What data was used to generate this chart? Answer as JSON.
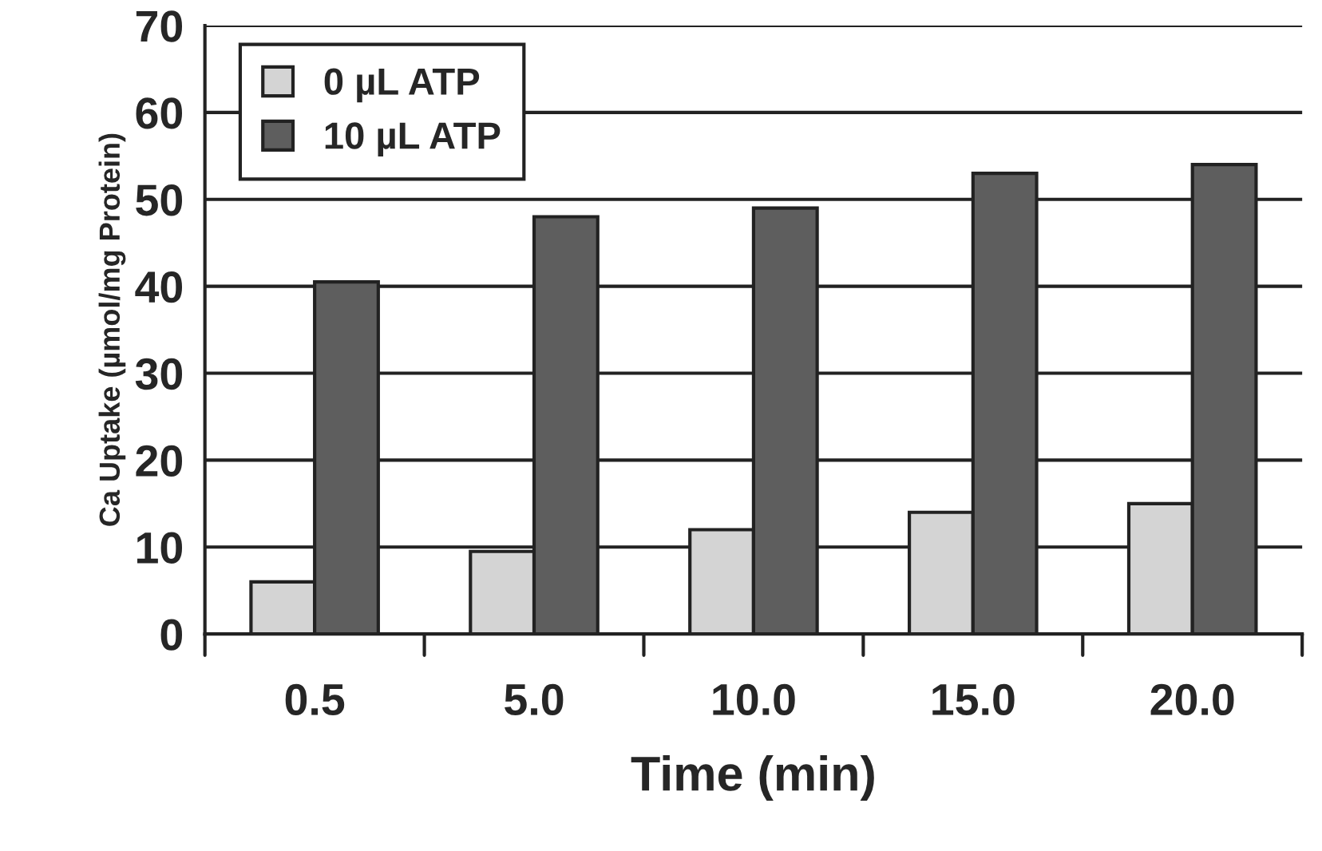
{
  "chart_data": {
    "type": "bar",
    "xlabel": "Time (min)",
    "ylabel": "Ca Uptake (µmol/mg Protein)",
    "categories": [
      "0.5",
      "5.0",
      "10.0",
      "15.0",
      "20.0"
    ],
    "series": [
      {
        "name": "0 µL ATP",
        "color": "#d4d4d4",
        "values": [
          6,
          9.5,
          12,
          14,
          15
        ]
      },
      {
        "name": "10 µL ATP",
        "color": "#5e5e5e",
        "values": [
          40.5,
          48,
          49,
          53,
          54
        ]
      }
    ],
    "ylim": [
      0,
      70
    ],
    "yticks": [
      0,
      10,
      20,
      30,
      40,
      50,
      60,
      70
    ],
    "grid": "y",
    "legend": "top left"
  }
}
